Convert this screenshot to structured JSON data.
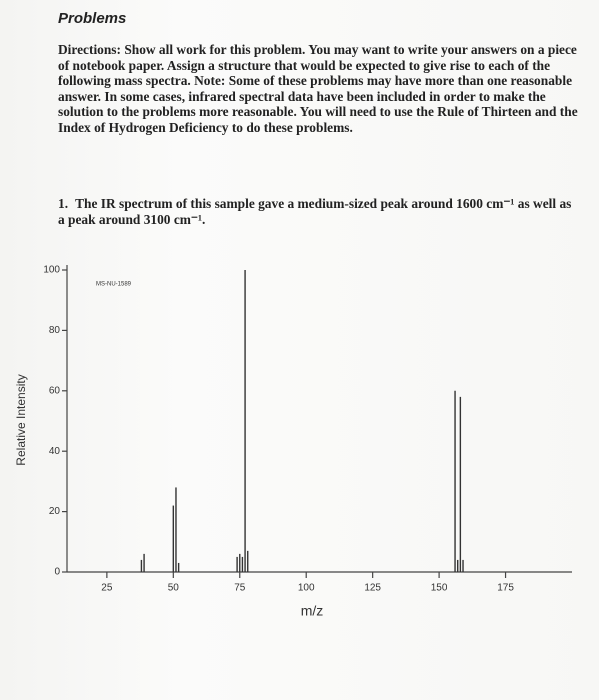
{
  "document": {
    "heading": "Problems",
    "directions": "Directions: Show all work for this problem. You may want to write your answers on a piece of notebook paper. Assign a structure that would be expected to give rise to each of the following mass spectra. Note: Some of these problems may have more than one reasonable answer. In some cases, infrared spectral data have been included in order to make the solution to the problems more reasonable. You will need to use the Rule of Thirteen and the Index of Hydrogen Deficiency to do these problems.",
    "question": {
      "number": "1.",
      "text": "The IR spectrum of this sample gave a medium-sized peak around 1600 cm⁻¹ as well as a peak around 3100 cm⁻¹."
    }
  },
  "chart_data": {
    "type": "bar",
    "title": "MS-NU-1589",
    "x_label": "m/z",
    "y_label": "Relative Intensity",
    "x": [
      38,
      39,
      50,
      51,
      52,
      74,
      75,
      76,
      77,
      78,
      156,
      157,
      158,
      159
    ],
    "values": [
      4,
      6,
      22,
      28,
      3,
      5,
      6,
      5,
      100,
      7,
      60,
      4,
      58,
      4
    ],
    "color": "#333333",
    "xlim": [
      10,
      200
    ],
    "xticks": [
      25,
      50,
      75,
      100,
      125,
      150,
      175
    ],
    "ylim": [
      0,
      100
    ],
    "yticks": [
      0,
      20,
      40,
      60,
      80,
      100
    ]
  }
}
